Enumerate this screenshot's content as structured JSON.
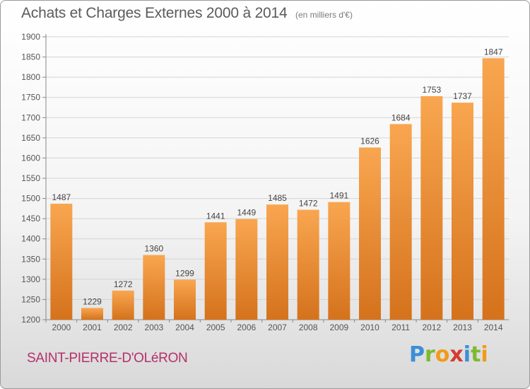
{
  "header": {
    "title": "Achats et Charges Externes 2000 à 2014",
    "unit": "(en milliers d'€)"
  },
  "footer": {
    "place": "SAINT-PIERRE-D'OLéRON",
    "brand": "Proxiti"
  },
  "colors": {
    "bar_top": "#f9a650",
    "bar_bottom": "#d5721c",
    "title": "#5b5b5b",
    "place": "#b5306a"
  },
  "chart_data": {
    "type": "bar",
    "title": "Achats et Charges Externes 2000 à 2014",
    "subtitle": "(en milliers d'€)",
    "categories": [
      "2000",
      "2001",
      "2002",
      "2003",
      "2004",
      "2005",
      "2006",
      "2007",
      "2008",
      "2009",
      "2010",
      "2011",
      "2012",
      "2013",
      "2014"
    ],
    "values": [
      1487,
      1229,
      1272,
      1360,
      1299,
      1441,
      1449,
      1485,
      1472,
      1491,
      1626,
      1684,
      1753,
      1737,
      1847
    ],
    "ylim": [
      1200,
      1900
    ],
    "yticks": [
      1200,
      1250,
      1300,
      1350,
      1400,
      1450,
      1500,
      1550,
      1600,
      1650,
      1700,
      1750,
      1800,
      1850,
      1900
    ],
    "grid": true,
    "data_labels": true
  }
}
